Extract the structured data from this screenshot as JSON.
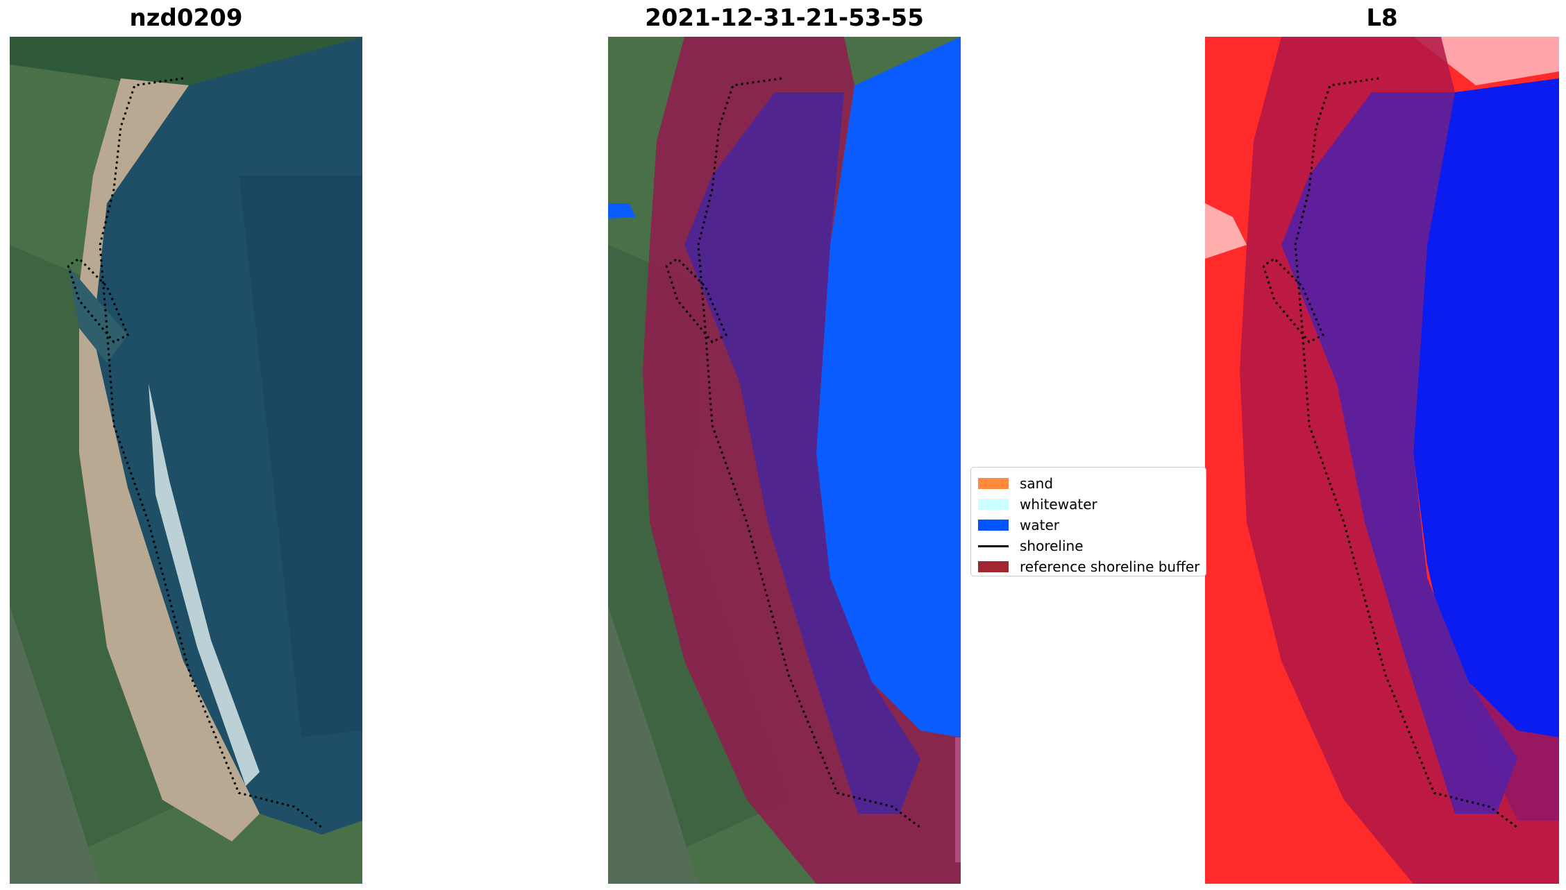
{
  "panels": [
    {
      "title": "nzd0209"
    },
    {
      "title": "2021-12-31-21-53-55"
    },
    {
      "title": "L8"
    }
  ],
  "legend": {
    "items": [
      {
        "label": "sand",
        "color": "#ff8c3a",
        "kind": "patch"
      },
      {
        "label": "whitewater",
        "color": "#ccffff",
        "kind": "patch"
      },
      {
        "label": "water",
        "color": "#0055ff",
        "kind": "patch"
      },
      {
        "label": "shoreline",
        "color": "#000000",
        "kind": "line"
      },
      {
        "label": "reference shoreline buffer",
        "color": "#a0262f",
        "kind": "patch"
      }
    ]
  },
  "colors": {
    "land_green": "#4f7a4e",
    "sea_blue": "#1f4f66",
    "sand": "#b9a992",
    "buffer": "#8e1f4f",
    "classified_water": "#0a5cff",
    "index_red": "#ff2a2a",
    "index_blue": "#0a1cf0"
  }
}
